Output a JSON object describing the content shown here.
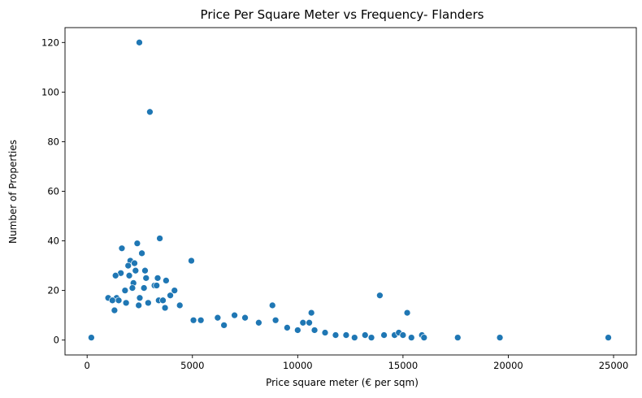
{
  "chart_data": {
    "type": "scatter",
    "title": "Price Per Square Meter vs Frequency- Flanders",
    "xlabel": "Price square meter (€ per sqm)",
    "ylabel": "Number of Properties",
    "xlim": [
      -1050,
      26080
    ],
    "ylim": [
      -6,
      126
    ],
    "xticks": [
      0,
      5000,
      10000,
      15000,
      20000,
      25000
    ],
    "yticks": [
      0,
      20,
      40,
      60,
      80,
      100,
      120
    ],
    "grid": false,
    "legend": "none",
    "color": "#1f77b4",
    "series": [
      {
        "points": [
          [
            200,
            1
          ],
          [
            2480,
            120
          ],
          [
            2980,
            92
          ],
          [
            3450,
            41
          ],
          [
            2380,
            39
          ],
          [
            1650,
            37
          ],
          [
            2600,
            35
          ],
          [
            2050,
            32
          ],
          [
            4950,
            32
          ],
          [
            2250,
            31
          ],
          [
            1950,
            30
          ],
          [
            2300,
            28
          ],
          [
            2750,
            28
          ],
          [
            1600,
            27
          ],
          [
            1350,
            26
          ],
          [
            2000,
            26
          ],
          [
            3350,
            25
          ],
          [
            2800,
            25
          ],
          [
            3750,
            24
          ],
          [
            2200,
            23
          ],
          [
            3200,
            22
          ],
          [
            3300,
            22
          ],
          [
            2700,
            21
          ],
          [
            2150,
            21
          ],
          [
            4150,
            20
          ],
          [
            1800,
            20
          ],
          [
            3950,
            18
          ],
          [
            1400,
            17
          ],
          [
            1000,
            17
          ],
          [
            1200,
            16
          ],
          [
            1500,
            16
          ],
          [
            2500,
            17
          ],
          [
            3400,
            16
          ],
          [
            1850,
            15
          ],
          [
            2900,
            15
          ],
          [
            3600,
            16
          ],
          [
            4400,
            14
          ],
          [
            3700,
            13
          ],
          [
            1300,
            12
          ],
          [
            2450,
            14
          ],
          [
            5050,
            8
          ],
          [
            5400,
            8
          ],
          [
            6200,
            9
          ],
          [
            6500,
            6
          ],
          [
            7000,
            10
          ],
          [
            7500,
            9
          ],
          [
            8150,
            7
          ],
          [
            8800,
            14
          ],
          [
            8950,
            8
          ],
          [
            9500,
            5
          ],
          [
            10000,
            4
          ],
          [
            10250,
            7
          ],
          [
            10650,
            11
          ],
          [
            10550,
            7
          ],
          [
            10800,
            4
          ],
          [
            11300,
            3
          ],
          [
            11800,
            2
          ],
          [
            12300,
            2
          ],
          [
            12700,
            1
          ],
          [
            13200,
            2
          ],
          [
            13500,
            1
          ],
          [
            13900,
            18
          ],
          [
            14100,
            2
          ],
          [
            14600,
            2
          ],
          [
            14800,
            3
          ],
          [
            15000,
            2
          ],
          [
            15200,
            11
          ],
          [
            15400,
            1
          ],
          [
            15900,
            2
          ],
          [
            16000,
            1
          ],
          [
            17600,
            1
          ],
          [
            19600,
            1
          ],
          [
            24750,
            1
          ]
        ]
      }
    ]
  }
}
